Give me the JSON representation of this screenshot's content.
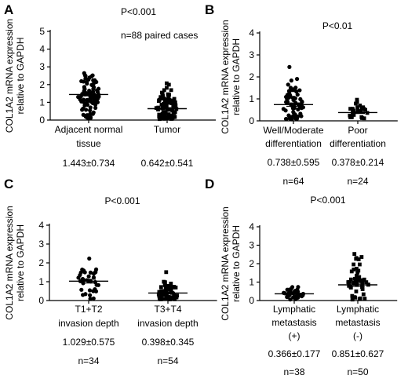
{
  "chart_data": [
    {
      "panel": "A",
      "type": "scatter",
      "ylabel": [
        "COL1A2 mRNA expression",
        "relative to GAPDH"
      ],
      "ylim": [
        0,
        5
      ],
      "yticks": [
        0,
        1,
        2,
        3,
        4,
        5
      ],
      "annotations": [
        "P<0.001",
        "n=88 paired cases"
      ],
      "groups": [
        {
          "label_lines": [
            "Adjacent normal",
            "tissue"
          ],
          "stats": [
            "1.443±0.734"
          ],
          "marker": "circle",
          "mean": 1.443,
          "sd": 0.734,
          "n": 88
        },
        {
          "label_lines": [
            "Tumor"
          ],
          "stats": [
            "0.642±0.541"
          ],
          "marker": "square",
          "mean": 0.642,
          "sd": 0.541,
          "n": 88
        }
      ]
    },
    {
      "panel": "B",
      "type": "scatter",
      "ylabel": [
        "COL1A2 mRNA expression",
        "relative to GAPDH"
      ],
      "ylim": [
        0,
        4
      ],
      "yticks": [
        0,
        1,
        2,
        3,
        4
      ],
      "annotations": [
        "P<0.01"
      ],
      "groups": [
        {
          "label_lines": [
            "Well/Moderate",
            "differentiation"
          ],
          "stats": [
            "0.738±0.595",
            "n=64"
          ],
          "marker": "circle",
          "mean": 0.738,
          "sd": 0.595,
          "n": 64
        },
        {
          "label_lines": [
            "Poor",
            "differentiation"
          ],
          "stats": [
            "0.378±0.214",
            "n=24"
          ],
          "marker": "square",
          "mean": 0.378,
          "sd": 0.214,
          "n": 24
        }
      ]
    },
    {
      "panel": "C",
      "type": "scatter",
      "ylabel": [
        "COL1A2 mRNA expression",
        "relative to GAPDH"
      ],
      "ylim": [
        0,
        4
      ],
      "yticks": [
        0,
        1,
        2,
        3,
        4
      ],
      "annotations": [
        "P<0.001"
      ],
      "groups": [
        {
          "label_lines": [
            "T1+T2",
            "invasion depth"
          ],
          "stats": [
            "1.029±0.575",
            "n=34"
          ],
          "marker": "circle",
          "mean": 1.029,
          "sd": 0.575,
          "n": 34
        },
        {
          "label_lines": [
            "T3+T4",
            "invasion depth"
          ],
          "stats": [
            "0.398±0.345",
            "n=54"
          ],
          "marker": "square",
          "mean": 0.398,
          "sd": 0.345,
          "n": 54
        }
      ]
    },
    {
      "panel": "D",
      "type": "scatter",
      "ylabel": [
        "COL1A2 mRNA expression",
        "relative to GAPDH"
      ],
      "ylim": [
        0,
        4
      ],
      "yticks": [
        0,
        1,
        2,
        3,
        4
      ],
      "annotations": [
        "P<0.001"
      ],
      "groups": [
        {
          "label_lines": [
            "Lymphatic",
            "metastasis",
            "(+)"
          ],
          "stats": [
            "0.366±0.177",
            "n=38"
          ],
          "marker": "circle",
          "mean": 0.366,
          "sd": 0.177,
          "n": 38
        },
        {
          "label_lines": [
            "Lymphatic",
            "metastasis",
            "(-)"
          ],
          "stats": [
            "0.851±0.627",
            "n=50"
          ],
          "marker": "square",
          "mean": 0.851,
          "sd": 0.627,
          "n": 50
        }
      ]
    }
  ]
}
